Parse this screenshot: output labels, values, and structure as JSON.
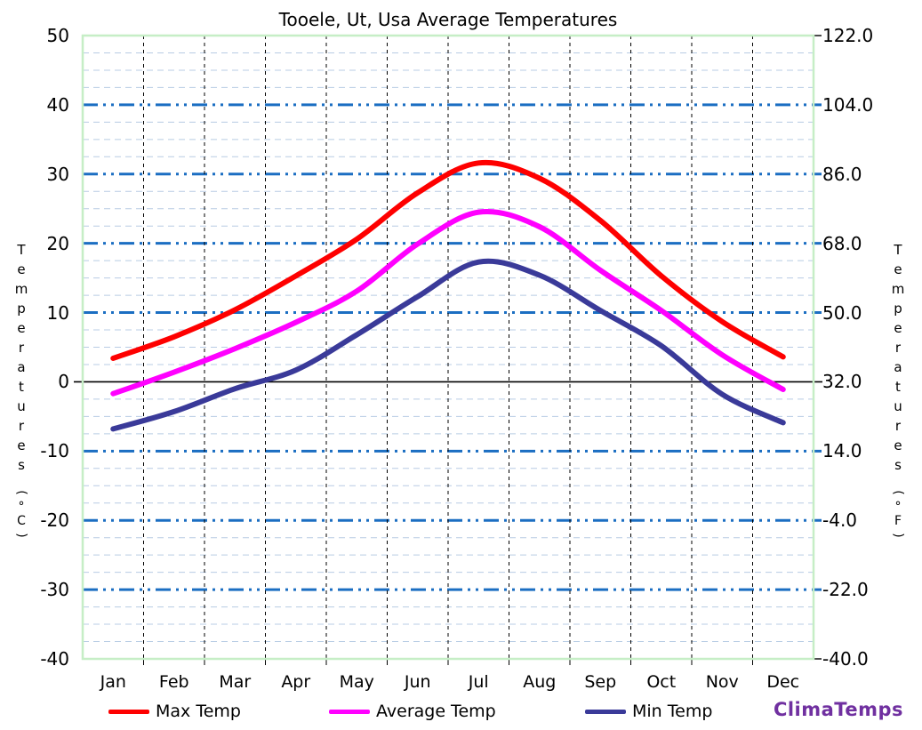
{
  "title": "Tooele, Ut, Usa Average Temperatures",
  "watermark": "ClimaTemps",
  "axes": {
    "left_title": "Temperatures",
    "left_unit": "(°C)",
    "right_title": "Temperatures",
    "right_unit": "(°F)",
    "left_ticks": [
      "50",
      "40",
      "30",
      "20",
      "10",
      "0",
      "-10",
      "-20",
      "-30",
      "-40"
    ],
    "right_ticks": [
      "122.0",
      "104.0",
      "86.0",
      "68.0",
      "50.0",
      "32.0",
      "14.0",
      "-4.0",
      "-22.0",
      "-40.0"
    ]
  },
  "legend": [
    {
      "label": "Max Temp",
      "color": "#fe0000"
    },
    {
      "label": "Average Temp",
      "color": "#ff00ff"
    },
    {
      "label": "Min Temp",
      "color": "#3a3a99"
    }
  ],
  "colors": {
    "max_line": "#fe0000",
    "avg_line": "#ff00ff",
    "min_line": "#3a3a99",
    "frame": "#c6eec6",
    "grid_minor": "#b8cce4",
    "grid_major": "#1b6ec2",
    "month_grid": "#000000",
    "zero_line": "#000000",
    "logo": "#7030a0"
  },
  "chart_data": {
    "type": "line",
    "title": "Tooele, Ut, Usa Average Temperatures",
    "categories": [
      "Jan",
      "Feb",
      "Mar",
      "Apr",
      "May",
      "Jun",
      "Jul",
      "Aug",
      "Sep",
      "Oct",
      "Nov",
      "Dec"
    ],
    "series": [
      {
        "name": "Max Temp",
        "color": "#fe0000",
        "values": [
          3.4,
          6.5,
          10.4,
          15.3,
          20.6,
          27.3,
          31.6,
          29.4,
          23.3,
          15.3,
          8.7,
          3.6
        ]
      },
      {
        "name": "Average Temp",
        "color": "#ff00ff",
        "values": [
          -1.7,
          1.4,
          4.8,
          8.6,
          13.1,
          19.9,
          24.5,
          22.4,
          16.1,
          10.3,
          3.9,
          -1.1
        ]
      },
      {
        "name": "Min Temp",
        "color": "#3a3a99",
        "values": [
          -6.8,
          -4.3,
          -1.0,
          1.7,
          6.8,
          12.3,
          17.3,
          15.4,
          10.3,
          5.2,
          -1.8,
          -5.9
        ]
      }
    ],
    "ylabel_left": "Temperatures (°C)",
    "ylabel_right": "Temperatures (°F)",
    "ylim": [
      -40,
      50
    ],
    "yticks_c": [
      50,
      40,
      30,
      20,
      10,
      0,
      -10,
      -20,
      -30,
      -40
    ],
    "yticks_f": [
      122,
      104,
      86,
      68,
      50,
      32,
      14,
      -4,
      -22,
      -40
    ],
    "grid": {
      "major_step": 10,
      "minor_step": 2.5,
      "legend_position": "bottom"
    }
  }
}
